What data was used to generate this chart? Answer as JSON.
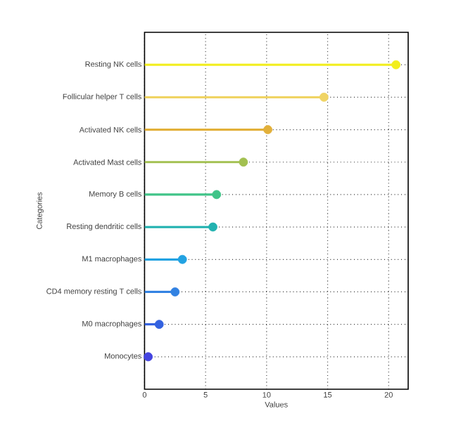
{
  "chart_data": {
    "type": "lollipop",
    "orientation": "horizontal",
    "xlabel": "Values",
    "ylabel": "Categories",
    "categories": [
      "Resting NK cells",
      "Follicular helper T cells",
      "Activated NK cells",
      "Activated Mast cells",
      "Memory B cells",
      "Resting dendritic cells",
      "M1 macrophages",
      "CD4 memory resting T cells",
      "M0 macrophages",
      "Monocytes"
    ],
    "values": [
      20.6,
      14.7,
      10.1,
      8.1,
      5.9,
      5.6,
      3.1,
      2.5,
      1.2,
      0.3
    ],
    "colors": [
      "#f2ee1e",
      "#f0d464",
      "#e2b03a",
      "#a2c050",
      "#40c488",
      "#22b2b0",
      "#22a2e2",
      "#3282e2",
      "#3462e0",
      "#4444e0"
    ],
    "xlim": [
      0,
      21.6
    ],
    "xticks": [
      0,
      5,
      10,
      15,
      20
    ],
    "grid": true,
    "line_style": "dotted",
    "marker": "circle"
  }
}
